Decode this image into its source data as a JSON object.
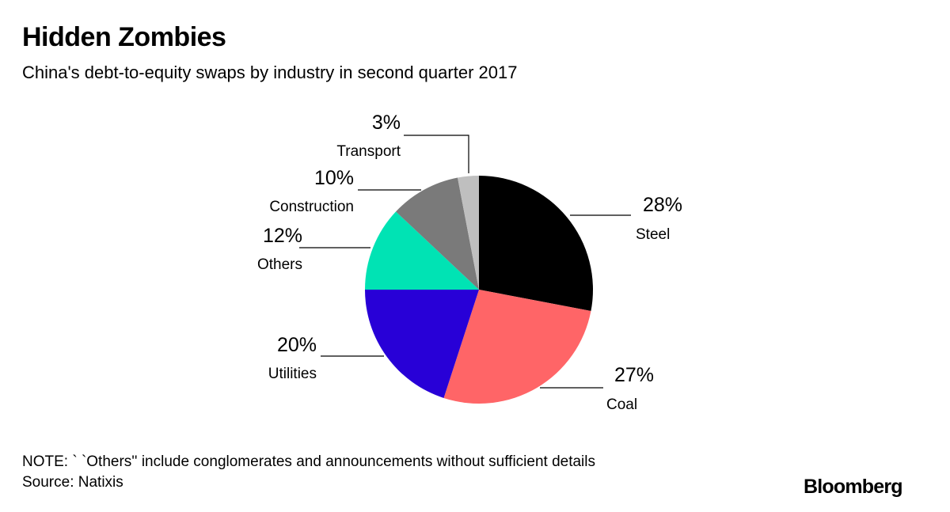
{
  "header": {
    "title": "Hidden Zombies",
    "subtitle": "China's debt-to-equity swaps by industry in second quarter 2017"
  },
  "footer": {
    "note": "NOTE: ` `Others'' include conglomerates and announcements without sufficient details",
    "source": "Source: Natixis",
    "logo": "Bloomberg"
  },
  "chart_data": {
    "type": "pie",
    "title": "Hidden Zombies",
    "subtitle": "China's debt-to-equity swaps by industry in second quarter 2017",
    "start": "12 o'clock",
    "direction": "clockwise",
    "unit": "%",
    "slices": [
      {
        "label": "Steel",
        "value": 28,
        "value_label": "28%",
        "color": "#000000"
      },
      {
        "label": "Coal",
        "value": 27,
        "value_label": "27%",
        "color": "#ff6567"
      },
      {
        "label": "Utilities",
        "value": 20,
        "value_label": "20%",
        "color": "#2800d7"
      },
      {
        "label": "Others",
        "value": 12,
        "value_label": "12%",
        "color": "#00e3b4"
      },
      {
        "label": "Construction",
        "value": 10,
        "value_label": "10%",
        "color": "#7a7a7a"
      },
      {
        "label": "Transport",
        "value": 3,
        "value_label": "3%",
        "color": "#bfbfbf"
      }
    ]
  }
}
